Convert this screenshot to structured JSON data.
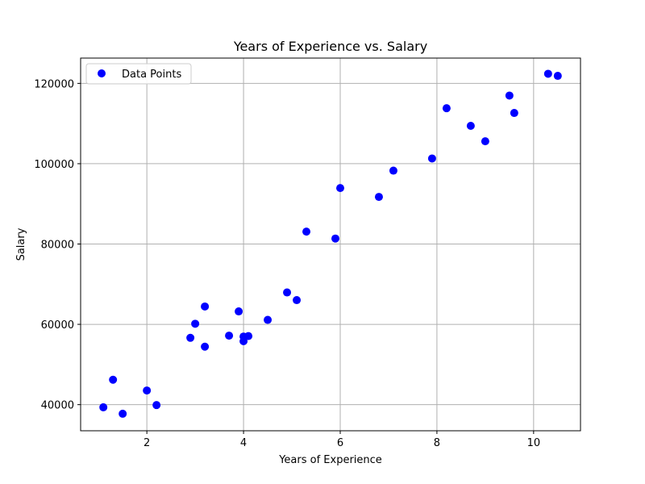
{
  "chart_data": {
    "type": "scatter",
    "title": "Years of Experience vs. Salary",
    "xlabel": "Years of Experience",
    "ylabel": "Salary",
    "xlim": [
      0.63,
      10.97
    ],
    "ylim": [
      33500,
      126300
    ],
    "xticks": [
      2,
      4,
      6,
      8,
      10
    ],
    "xtick_labels": [
      "2",
      "4",
      "6",
      "8",
      "10"
    ],
    "yticks": [
      40000,
      60000,
      80000,
      100000,
      120000
    ],
    "ytick_labels": [
      "40000",
      "60000",
      "80000",
      "100000",
      "120000"
    ],
    "grid": true,
    "legend": {
      "placement": "top-left",
      "entries": [
        "Data Points"
      ]
    },
    "series": [
      {
        "name": "Data Points",
        "color": "#0000ff",
        "marker": "circle",
        "x": [
          1.1,
          1.3,
          1.5,
          2.0,
          2.2,
          2.9,
          3.0,
          3.2,
          3.2,
          3.7,
          3.9,
          4.0,
          4.0,
          4.1,
          4.5,
          4.9,
          5.1,
          5.3,
          5.9,
          6.0,
          6.8,
          7.1,
          7.9,
          8.2,
          8.7,
          9.0,
          9.5,
          9.6,
          10.3,
          10.5
        ],
        "y": [
          39343,
          46205,
          37731,
          43525,
          39891,
          56642,
          60150,
          54445,
          64445,
          57189,
          63218,
          55794,
          56957,
          57081,
          61111,
          67938,
          66029,
          83088,
          81363,
          93940,
          91738,
          98273,
          101302,
          113812,
          109431,
          105582,
          116969,
          112635,
          122391,
          121872
        ]
      }
    ]
  }
}
